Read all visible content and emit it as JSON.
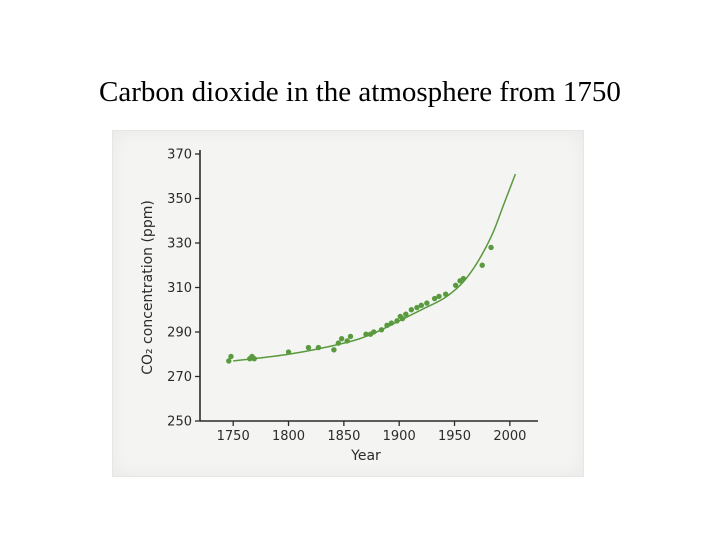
{
  "slide": {
    "title": "Carbon dioxide in the atmosphere from 1750"
  },
  "chart_data": {
    "type": "scatter",
    "title": "",
    "xlabel": "Year",
    "ylabel": "CO₂ concentration (ppm)",
    "xlim": [
      1720,
      2020
    ],
    "ylim": [
      250,
      370
    ],
    "xticks": [
      1750,
      1800,
      1850,
      1900,
      1950,
      2000
    ],
    "yticks": [
      250,
      270,
      290,
      310,
      330,
      350,
      370
    ],
    "grid": false,
    "colors": {
      "points": "#5a9a3f",
      "curve": "#5a9a3f",
      "axis": "#2b2b2b"
    },
    "series": [
      {
        "points": [
          [
            1746,
            277
          ],
          [
            1748,
            279
          ],
          [
            1765,
            278
          ],
          [
            1767,
            279
          ],
          [
            1769,
            278
          ],
          [
            1800,
            281
          ],
          [
            1818,
            283
          ],
          [
            1827,
            283
          ],
          [
            1841,
            282
          ],
          [
            1845,
            285
          ],
          [
            1848,
            287
          ],
          [
            1853,
            286
          ],
          [
            1856,
            288
          ],
          [
            1870,
            289
          ],
          [
            1874,
            289
          ],
          [
            1877,
            290
          ],
          [
            1884,
            291
          ],
          [
            1889,
            293
          ],
          [
            1893,
            294
          ],
          [
            1898,
            295
          ],
          [
            1901,
            297
          ],
          [
            1903,
            296
          ],
          [
            1906,
            298
          ],
          [
            1911,
            300
          ],
          [
            1916,
            301
          ],
          [
            1920,
            302
          ],
          [
            1925,
            303
          ],
          [
            1932,
            305
          ],
          [
            1936,
            306
          ],
          [
            1942,
            307
          ],
          [
            1951,
            311
          ],
          [
            1955,
            313
          ],
          [
            1958,
            314
          ],
          [
            1975,
            320
          ],
          [
            1983,
            328
          ]
        ]
      }
    ],
    "trend": {
      "x": [
        1750,
        1800,
        1850,
        1875,
        1900,
        1920,
        1940,
        1955,
        1965,
        1975,
        1985,
        1995,
        2005
      ],
      "y": [
        277,
        280,
        285,
        289,
        295,
        300,
        305,
        311,
        317,
        325,
        335,
        348,
        361
      ]
    }
  }
}
